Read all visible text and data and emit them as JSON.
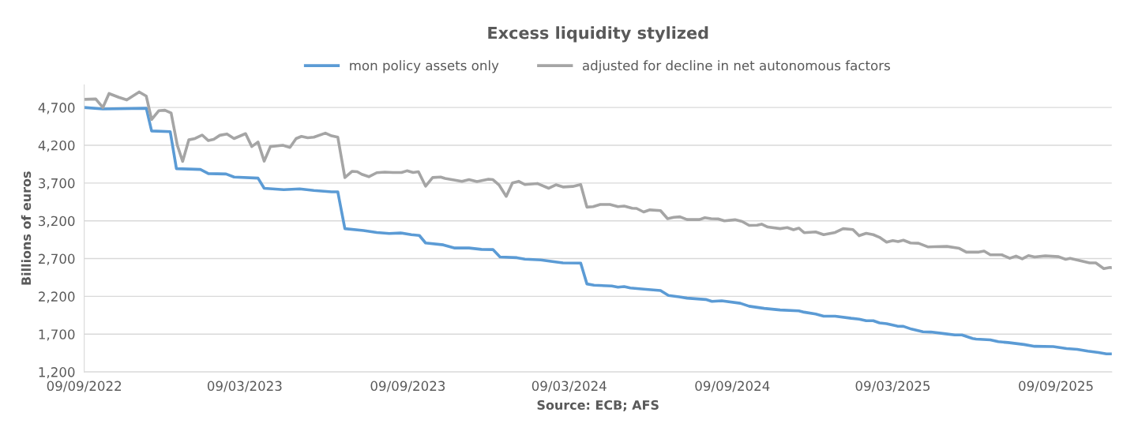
{
  "chart_data": {
    "type": "line",
    "title": "Excess liquidity stylized",
    "xlabel": "Source: ECB; AFS",
    "ylabel": "Billions of euros",
    "xlim": [
      "2022-09-09",
      "2025-11-11"
    ],
    "xticks": [
      {
        "value": "2022-09-09",
        "label": "09/09/2022"
      },
      {
        "value": "2023-03-09",
        "label": "09/03/2023"
      },
      {
        "value": "2023-09-09",
        "label": "09/09/2023"
      },
      {
        "value": "2024-03-09",
        "label": "09/03/2024"
      },
      {
        "value": "2024-09-09",
        "label": "09/09/2024"
      },
      {
        "value": "2025-03-09",
        "label": "09/03/2025"
      },
      {
        "value": "2025-09-09",
        "label": "09/09/2025"
      }
    ],
    "ylim": [
      1200,
      5000
    ],
    "yticks": [
      {
        "value": 1200,
        "label": "1,200"
      },
      {
        "value": 1700,
        "label": "1,700"
      },
      {
        "value": 2200,
        "label": "2,200"
      },
      {
        "value": 2700,
        "label": "2,700"
      },
      {
        "value": 3200,
        "label": "3,200"
      },
      {
        "value": 3700,
        "label": "3,700"
      },
      {
        "value": 4200,
        "label": "4,200"
      },
      {
        "value": 4700,
        "label": "4,700"
      }
    ],
    "grid": "y",
    "legend": "top",
    "marker": "none",
    "line_style": "solid",
    "series": [
      {
        "name": "mon policy assets only",
        "color": "#5b9bd5",
        "x": [
          "2022-09-09",
          "2022-09-30",
          "2022-11-18",
          "2022-11-24",
          "2022-12-15",
          "2022-12-22",
          "2023-01-18",
          "2023-01-27",
          "2023-02-16",
          "2023-02-25",
          "2023-03-24",
          "2023-03-31",
          "2023-04-22",
          "2023-05-10",
          "2023-05-26",
          "2023-06-15",
          "2023-06-22",
          "2023-06-30",
          "2023-07-21",
          "2023-08-05",
          "2023-08-19",
          "2023-09-01",
          "2023-09-13",
          "2023-09-22",
          "2023-09-29",
          "2023-10-19",
          "2023-11-01",
          "2023-11-17",
          "2023-12-01",
          "2023-12-14",
          "2023-12-22",
          "2024-01-10",
          "2024-01-19",
          "2024-02-06",
          "2024-02-19",
          "2024-03-02",
          "2024-03-22",
          "2024-03-29",
          "2024-04-06",
          "2024-04-26",
          "2024-05-03",
          "2024-05-10",
          "2024-05-17",
          "2024-06-01",
          "2024-06-20",
          "2024-06-29",
          "2024-07-11",
          "2024-07-20",
          "2024-08-10",
          "2024-08-17",
          "2024-08-28",
          "2024-09-18",
          "2024-09-28",
          "2024-10-15",
          "2024-11-02",
          "2024-11-23",
          "2024-11-29",
          "2024-12-12",
          "2024-12-21",
          "2025-01-03",
          "2025-01-21",
          "2025-01-30",
          "2025-02-07",
          "2025-02-15",
          "2025-02-22",
          "2025-03-02",
          "2025-03-14",
          "2025-03-21",
          "2025-03-30",
          "2025-04-12",
          "2025-04-21",
          "2025-05-06",
          "2025-05-18",
          "2025-05-26",
          "2025-06-07",
          "2025-06-11",
          "2025-06-27",
          "2025-07-06",
          "2025-07-17",
          "2025-08-04",
          "2025-08-16",
          "2025-09-06",
          "2025-09-21",
          "2025-10-03",
          "2025-10-15",
          "2025-10-27",
          "2025-11-05",
          "2025-11-11"
        ],
        "values": [
          4700,
          4680,
          4690,
          4390,
          4380,
          3890,
          3880,
          3825,
          3820,
          3780,
          3765,
          3630,
          3613,
          3623,
          3602,
          3584,
          3584,
          3096,
          3071,
          3046,
          3032,
          3039,
          3017,
          3006,
          2907,
          2882,
          2840,
          2840,
          2822,
          2820,
          2722,
          2712,
          2693,
          2683,
          2661,
          2643,
          2640,
          2365,
          2348,
          2337,
          2322,
          2330,
          2312,
          2295,
          2277,
          2212,
          2194,
          2177,
          2159,
          2134,
          2141,
          2109,
          2070,
          2041,
          2020,
          2009,
          1991,
          1966,
          1938,
          1938,
          1910,
          1899,
          1878,
          1878,
          1849,
          1838,
          1806,
          1803,
          1767,
          1731,
          1728,
          1707,
          1689,
          1689,
          1643,
          1635,
          1624,
          1600,
          1589,
          1563,
          1539,
          1535,
          1510,
          1499,
          1475,
          1457,
          1439,
          1439
        ]
      },
      {
        "name": "adjusted for decline in net autonomous factors",
        "color": "#a5a5a5",
        "x": [
          "2022-09-09",
          "2022-09-22",
          "2022-09-30",
          "2022-10-07",
          "2022-10-18",
          "2022-10-27",
          "2022-11-10",
          "2022-11-18",
          "2022-11-24",
          "2022-12-02",
          "2022-12-09",
          "2022-12-16",
          "2022-12-23",
          "2022-12-29",
          "2023-01-05",
          "2023-01-12",
          "2023-01-20",
          "2023-01-27",
          "2023-02-02",
          "2023-02-09",
          "2023-02-17",
          "2023-02-25",
          "2023-03-10",
          "2023-03-17",
          "2023-03-24",
          "2023-03-31",
          "2023-04-07",
          "2023-04-21",
          "2023-04-29",
          "2023-05-06",
          "2023-05-12",
          "2023-05-19",
          "2023-05-26",
          "2023-06-08",
          "2023-06-15",
          "2023-06-22",
          "2023-06-30",
          "2023-07-08",
          "2023-07-14",
          "2023-07-19",
          "2023-07-27",
          "2023-08-05",
          "2023-08-14",
          "2023-08-23",
          "2023-09-02",
          "2023-09-08",
          "2023-09-15",
          "2023-09-21",
          "2023-09-29",
          "2023-10-07",
          "2023-10-16",
          "2023-10-21",
          "2023-11-09",
          "2023-11-17",
          "2023-11-26",
          "2023-12-09",
          "2023-12-14",
          "2023-12-21",
          "2023-12-29",
          "2024-01-05",
          "2024-01-12",
          "2024-01-19",
          "2024-02-02",
          "2024-02-15",
          "2024-02-23",
          "2024-03-02",
          "2024-03-13",
          "2024-03-22",
          "2024-03-29",
          "2024-04-05",
          "2024-04-13",
          "2024-04-24",
          "2024-05-03",
          "2024-05-10",
          "2024-05-19",
          "2024-05-24",
          "2024-06-01",
          "2024-06-08",
          "2024-06-20",
          "2024-06-28",
          "2024-07-05",
          "2024-07-12",
          "2024-07-20",
          "2024-08-03",
          "2024-08-09",
          "2024-08-16",
          "2024-08-24",
          "2024-08-31",
          "2024-09-12",
          "2024-09-20",
          "2024-09-28",
          "2024-10-07",
          "2024-10-12",
          "2024-10-19",
          "2024-11-02",
          "2024-11-10",
          "2024-11-17",
          "2024-11-23",
          "2024-11-29",
          "2024-12-12",
          "2024-12-21",
          "2025-01-03",
          "2025-01-12",
          "2025-01-23",
          "2025-01-30",
          "2025-02-07",
          "2025-02-15",
          "2025-02-22",
          "2025-03-02",
          "2025-03-09",
          "2025-03-15",
          "2025-03-21",
          "2025-03-29",
          "2025-04-07",
          "2025-04-18",
          "2025-04-25",
          "2025-05-09",
          "2025-05-23",
          "2025-05-31",
          "2025-06-14",
          "2025-06-20",
          "2025-06-27",
          "2025-07-10",
          "2025-07-19",
          "2025-07-26",
          "2025-08-02",
          "2025-08-09",
          "2025-08-16",
          "2025-08-28",
          "2025-09-12",
          "2025-09-20",
          "2025-09-25",
          "2025-10-17",
          "2025-10-24",
          "2025-11-02",
          "2025-11-09",
          "2025-11-11"
        ],
        "values": [
          4807,
          4813,
          4700,
          4885,
          4835,
          4800,
          4906,
          4850,
          4540,
          4657,
          4664,
          4628,
          4200,
          3987,
          4272,
          4289,
          4336,
          4262,
          4279,
          4332,
          4350,
          4289,
          4354,
          4183,
          4243,
          3990,
          4183,
          4200,
          4172,
          4289,
          4318,
          4300,
          4307,
          4361,
          4325,
          4307,
          3773,
          3855,
          3850,
          3816,
          3784,
          3837,
          3845,
          3840,
          3840,
          3862,
          3840,
          3850,
          3659,
          3773,
          3780,
          3762,
          3723,
          3745,
          3720,
          3750,
          3745,
          3673,
          3524,
          3701,
          3723,
          3680,
          3694,
          3631,
          3677,
          3648,
          3655,
          3680,
          3381,
          3388,
          3417,
          3417,
          3388,
          3395,
          3367,
          3364,
          3317,
          3345,
          3335,
          3228,
          3246,
          3253,
          3217,
          3217,
          3242,
          3228,
          3225,
          3199,
          3214,
          3192,
          3139,
          3142,
          3156,
          3118,
          3096,
          3110,
          3082,
          3103,
          3043,
          3053,
          3017,
          3046,
          3096,
          3085,
          3003,
          3035,
          3017,
          2982,
          2918,
          2939,
          2925,
          2943,
          2907,
          2903,
          2854,
          2857,
          2861,
          2836,
          2786,
          2786,
          2800,
          2750,
          2750,
          2704,
          2733,
          2697,
          2740,
          2722,
          2736,
          2725,
          2690,
          2704,
          2643,
          2643,
          2568,
          2583,
          2579
        ]
      }
    ]
  }
}
